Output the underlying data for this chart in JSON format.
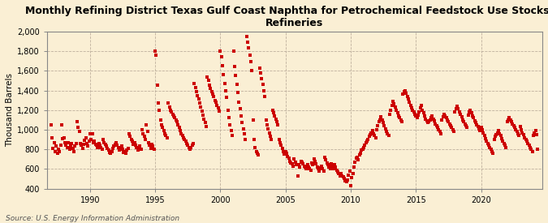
{
  "title": "Monthly Refining District Texas Gulf Coast Naphtha for Petrochemical Feedstock Use Stocks at\nRefineries",
  "ylabel": "Thousand Barrels",
  "source": "Source: U.S. Energy Information Administration",
  "background_color": "#faefd4",
  "plot_bg_color": "#faefd4",
  "marker_color": "#cc0000",
  "marker_size": 5,
  "ylim": [
    400,
    2000
  ],
  "yticks": [
    400,
    600,
    800,
    1000,
    1200,
    1400,
    1600,
    1800,
    2000
  ],
  "ytick_labels": [
    "400",
    "600",
    "800",
    "1,000",
    "1,200",
    "1,400",
    "1,600",
    "1,800",
    "2,000"
  ],
  "xlim_start": 1986.7,
  "xlim_end": 2024.7,
  "xticks": [
    1990,
    1995,
    2000,
    2005,
    2010,
    2015,
    2020
  ],
  "data": [
    [
      1987.0,
      1050
    ],
    [
      1987.08,
      920
    ],
    [
      1987.17,
      810
    ],
    [
      1987.25,
      870
    ],
    [
      1987.33,
      780
    ],
    [
      1987.42,
      830
    ],
    [
      1987.5,
      760
    ],
    [
      1987.58,
      800
    ],
    [
      1987.67,
      780
    ],
    [
      1987.75,
      840
    ],
    [
      1987.83,
      1050
    ],
    [
      1987.92,
      910
    ],
    [
      1988.0,
      920
    ],
    [
      1988.08,
      870
    ],
    [
      1988.17,
      840
    ],
    [
      1988.25,
      820
    ],
    [
      1988.33,
      870
    ],
    [
      1988.42,
      800
    ],
    [
      1988.5,
      830
    ],
    [
      1988.58,
      860
    ],
    [
      1988.67,
      810
    ],
    [
      1988.75,
      780
    ],
    [
      1988.83,
      830
    ],
    [
      1988.92,
      860
    ],
    [
      1989.0,
      1080
    ],
    [
      1989.08,
      1020
    ],
    [
      1989.17,
      980
    ],
    [
      1989.25,
      860
    ],
    [
      1989.33,
      840
    ],
    [
      1989.42,
      810
    ],
    [
      1989.5,
      850
    ],
    [
      1989.58,
      890
    ],
    [
      1989.67,
      920
    ],
    [
      1989.75,
      860
    ],
    [
      1989.83,
      830
    ],
    [
      1989.92,
      880
    ],
    [
      1990.0,
      960
    ],
    [
      1990.08,
      900
    ],
    [
      1990.17,
      960
    ],
    [
      1990.25,
      870
    ],
    [
      1990.33,
      880
    ],
    [
      1990.42,
      850
    ],
    [
      1990.5,
      840
    ],
    [
      1990.58,
      820
    ],
    [
      1990.67,
      860
    ],
    [
      1990.75,
      840
    ],
    [
      1990.83,
      820
    ],
    [
      1990.92,
      800
    ],
    [
      1991.0,
      900
    ],
    [
      1991.08,
      870
    ],
    [
      1991.17,
      850
    ],
    [
      1991.25,
      830
    ],
    [
      1991.33,
      810
    ],
    [
      1991.42,
      790
    ],
    [
      1991.5,
      770
    ],
    [
      1991.58,
      760
    ],
    [
      1991.67,
      780
    ],
    [
      1991.75,
      810
    ],
    [
      1991.83,
      830
    ],
    [
      1991.92,
      850
    ],
    [
      1992.0,
      870
    ],
    [
      1992.08,
      840
    ],
    [
      1992.17,
      820
    ],
    [
      1992.25,
      790
    ],
    [
      1992.33,
      810
    ],
    [
      1992.42,
      830
    ],
    [
      1992.5,
      800
    ],
    [
      1992.58,
      770
    ],
    [
      1992.67,
      780
    ],
    [
      1992.75,
      760
    ],
    [
      1992.83,
      790
    ],
    [
      1992.92,
      810
    ],
    [
      1993.0,
      960
    ],
    [
      1993.08,
      930
    ],
    [
      1993.17,
      900
    ],
    [
      1993.25,
      880
    ],
    [
      1993.33,
      850
    ],
    [
      1993.42,
      870
    ],
    [
      1993.5,
      840
    ],
    [
      1993.58,
      820
    ],
    [
      1993.67,
      790
    ],
    [
      1993.75,
      810
    ],
    [
      1993.83,
      830
    ],
    [
      1993.92,
      800
    ],
    [
      1994.0,
      1000
    ],
    [
      1994.08,
      960
    ],
    [
      1994.17,
      930
    ],
    [
      1994.25,
      900
    ],
    [
      1994.33,
      1050
    ],
    [
      1994.42,
      980
    ],
    [
      1994.5,
      870
    ],
    [
      1994.58,
      840
    ],
    [
      1994.67,
      810
    ],
    [
      1994.75,
      850
    ],
    [
      1994.83,
      830
    ],
    [
      1994.92,
      800
    ],
    [
      1995.0,
      1800
    ],
    [
      1995.08,
      1760
    ],
    [
      1995.17,
      1450
    ],
    [
      1995.25,
      1270
    ],
    [
      1995.33,
      1200
    ],
    [
      1995.42,
      1100
    ],
    [
      1995.5,
      1050
    ],
    [
      1995.58,
      1020
    ],
    [
      1995.67,
      990
    ],
    [
      1995.75,
      960
    ],
    [
      1995.83,
      940
    ],
    [
      1995.92,
      920
    ],
    [
      1996.0,
      1270
    ],
    [
      1996.08,
      1230
    ],
    [
      1996.17,
      1200
    ],
    [
      1996.25,
      1180
    ],
    [
      1996.33,
      1160
    ],
    [
      1996.42,
      1140
    ],
    [
      1996.5,
      1120
    ],
    [
      1996.58,
      1100
    ],
    [
      1996.67,
      1080
    ],
    [
      1996.75,
      1050
    ],
    [
      1996.83,
      1020
    ],
    [
      1996.92,
      990
    ],
    [
      1997.0,
      960
    ],
    [
      1997.08,
      940
    ],
    [
      1997.17,
      920
    ],
    [
      1997.25,
      900
    ],
    [
      1997.33,
      880
    ],
    [
      1997.42,
      860
    ],
    [
      1997.5,
      840
    ],
    [
      1997.58,
      820
    ],
    [
      1997.67,
      800
    ],
    [
      1997.75,
      820
    ],
    [
      1997.83,
      840
    ],
    [
      1997.92,
      860
    ],
    [
      1998.0,
      1470
    ],
    [
      1998.08,
      1430
    ],
    [
      1998.17,
      1390
    ],
    [
      1998.25,
      1350
    ],
    [
      1998.33,
      1310
    ],
    [
      1998.42,
      1270
    ],
    [
      1998.5,
      1230
    ],
    [
      1998.58,
      1190
    ],
    [
      1998.67,
      1150
    ],
    [
      1998.75,
      1110
    ],
    [
      1998.83,
      1070
    ],
    [
      1998.92,
      1030
    ],
    [
      1999.0,
      1540
    ],
    [
      1999.08,
      1500
    ],
    [
      1999.17,
      1450
    ],
    [
      1999.25,
      1420
    ],
    [
      1999.33,
      1390
    ],
    [
      1999.42,
      1360
    ],
    [
      1999.5,
      1340
    ],
    [
      1999.58,
      1300
    ],
    [
      1999.67,
      1280
    ],
    [
      1999.75,
      1250
    ],
    [
      1999.83,
      1220
    ],
    [
      1999.92,
      1190
    ],
    [
      2000.0,
      1800
    ],
    [
      2000.08,
      1740
    ],
    [
      2000.17,
      1650
    ],
    [
      2000.25,
      1560
    ],
    [
      2000.33,
      1470
    ],
    [
      2000.42,
      1400
    ],
    [
      2000.5,
      1330
    ],
    [
      2000.58,
      1200
    ],
    [
      2000.67,
      1120
    ],
    [
      2000.75,
      1050
    ],
    [
      2000.83,
      990
    ],
    [
      2000.92,
      940
    ],
    [
      2001.0,
      1800
    ],
    [
      2001.08,
      1640
    ],
    [
      2001.17,
      1550
    ],
    [
      2001.25,
      1460
    ],
    [
      2001.33,
      1380
    ],
    [
      2001.42,
      1280
    ],
    [
      2001.5,
      1210
    ],
    [
      2001.58,
      1140
    ],
    [
      2001.67,
      1070
    ],
    [
      2001.75,
      1010
    ],
    [
      2001.83,
      960
    ],
    [
      2001.92,
      900
    ],
    [
      2002.0,
      1950
    ],
    [
      2002.08,
      1890
    ],
    [
      2002.17,
      1830
    ],
    [
      2002.25,
      1760
    ],
    [
      2002.33,
      1690
    ],
    [
      2002.42,
      1600
    ],
    [
      2002.5,
      1100
    ],
    [
      2002.58,
      900
    ],
    [
      2002.67,
      820
    ],
    [
      2002.75,
      780
    ],
    [
      2002.83,
      760
    ],
    [
      2002.92,
      740
    ],
    [
      2003.0,
      1630
    ],
    [
      2003.08,
      1580
    ],
    [
      2003.17,
      1520
    ],
    [
      2003.25,
      1460
    ],
    [
      2003.33,
      1400
    ],
    [
      2003.42,
      1340
    ],
    [
      2003.5,
      1100
    ],
    [
      2003.58,
      1050
    ],
    [
      2003.67,
      1010
    ],
    [
      2003.75,
      970
    ],
    [
      2003.83,
      930
    ],
    [
      2003.92,
      900
    ],
    [
      2004.0,
      1200
    ],
    [
      2004.08,
      1170
    ],
    [
      2004.17,
      1140
    ],
    [
      2004.25,
      1110
    ],
    [
      2004.33,
      1080
    ],
    [
      2004.42,
      1050
    ],
    [
      2004.5,
      900
    ],
    [
      2004.58,
      870
    ],
    [
      2004.67,
      840
    ],
    [
      2004.75,
      810
    ],
    [
      2004.83,
      780
    ],
    [
      2004.92,
      750
    ],
    [
      2005.0,
      780
    ],
    [
      2005.08,
      760
    ],
    [
      2005.17,
      730
    ],
    [
      2005.25,
      710
    ],
    [
      2005.33,
      680
    ],
    [
      2005.42,
      660
    ],
    [
      2005.5,
      650
    ],
    [
      2005.58,
      630
    ],
    [
      2005.67,
      700
    ],
    [
      2005.75,
      670
    ],
    [
      2005.83,
      640
    ],
    [
      2005.92,
      530
    ],
    [
      2006.0,
      640
    ],
    [
      2006.08,
      620
    ],
    [
      2006.17,
      680
    ],
    [
      2006.25,
      670
    ],
    [
      2006.33,
      650
    ],
    [
      2006.42,
      630
    ],
    [
      2006.5,
      620
    ],
    [
      2006.58,
      600
    ],
    [
      2006.67,
      640
    ],
    [
      2006.75,
      620
    ],
    [
      2006.83,
      600
    ],
    [
      2006.92,
      590
    ],
    [
      2007.0,
      660
    ],
    [
      2007.08,
      640
    ],
    [
      2007.17,
      700
    ],
    [
      2007.25,
      680
    ],
    [
      2007.33,
      650
    ],
    [
      2007.42,
      620
    ],
    [
      2007.5,
      600
    ],
    [
      2007.58,
      580
    ],
    [
      2007.67,
      610
    ],
    [
      2007.75,
      630
    ],
    [
      2007.83,
      600
    ],
    [
      2007.92,
      580
    ],
    [
      2008.0,
      720
    ],
    [
      2008.08,
      690
    ],
    [
      2008.17,
      660
    ],
    [
      2008.25,
      640
    ],
    [
      2008.33,
      620
    ],
    [
      2008.42,
      600
    ],
    [
      2008.5,
      650
    ],
    [
      2008.58,
      630
    ],
    [
      2008.67,
      600
    ],
    [
      2008.75,
      640
    ],
    [
      2008.83,
      620
    ],
    [
      2008.92,
      590
    ],
    [
      2009.0,
      570
    ],
    [
      2009.08,
      550
    ],
    [
      2009.17,
      530
    ],
    [
      2009.25,
      550
    ],
    [
      2009.33,
      530
    ],
    [
      2009.42,
      520
    ],
    [
      2009.5,
      500
    ],
    [
      2009.58,
      480
    ],
    [
      2009.67,
      470
    ],
    [
      2009.75,
      490
    ],
    [
      2009.83,
      540
    ],
    [
      2009.92,
      580
    ],
    [
      2010.0,
      430
    ],
    [
      2010.08,
      510
    ],
    [
      2010.17,
      550
    ],
    [
      2010.25,
      620
    ],
    [
      2010.33,
      670
    ],
    [
      2010.42,
      710
    ],
    [
      2010.5,
      720
    ],
    [
      2010.58,
      690
    ],
    [
      2010.67,
      740
    ],
    [
      2010.75,
      760
    ],
    [
      2010.83,
      790
    ],
    [
      2010.92,
      800
    ],
    [
      2011.0,
      820
    ],
    [
      2011.08,
      840
    ],
    [
      2011.17,
      870
    ],
    [
      2011.25,
      880
    ],
    [
      2011.33,
      900
    ],
    [
      2011.42,
      930
    ],
    [
      2011.5,
      950
    ],
    [
      2011.58,
      970
    ],
    [
      2011.67,
      990
    ],
    [
      2011.75,
      960
    ],
    [
      2011.83,
      940
    ],
    [
      2011.92,
      920
    ],
    [
      2012.0,
      1000
    ],
    [
      2012.08,
      1040
    ],
    [
      2012.17,
      1080
    ],
    [
      2012.25,
      1100
    ],
    [
      2012.33,
      1130
    ],
    [
      2012.42,
      1100
    ],
    [
      2012.5,
      1070
    ],
    [
      2012.58,
      1040
    ],
    [
      2012.67,
      1010
    ],
    [
      2012.75,
      980
    ],
    [
      2012.83,
      960
    ],
    [
      2012.92,
      940
    ],
    [
      2013.0,
      1160
    ],
    [
      2013.08,
      1200
    ],
    [
      2013.17,
      1250
    ],
    [
      2013.25,
      1290
    ],
    [
      2013.33,
      1260
    ],
    [
      2013.42,
      1230
    ],
    [
      2013.5,
      1200
    ],
    [
      2013.58,
      1170
    ],
    [
      2013.67,
      1140
    ],
    [
      2013.75,
      1120
    ],
    [
      2013.83,
      1100
    ],
    [
      2013.92,
      1080
    ],
    [
      2014.0,
      1360
    ],
    [
      2014.08,
      1390
    ],
    [
      2014.17,
      1400
    ],
    [
      2014.25,
      1370
    ],
    [
      2014.33,
      1340
    ],
    [
      2014.42,
      1310
    ],
    [
      2014.5,
      1280
    ],
    [
      2014.58,
      1250
    ],
    [
      2014.67,
      1220
    ],
    [
      2014.75,
      1200
    ],
    [
      2014.83,
      1180
    ],
    [
      2014.92,
      1160
    ],
    [
      2015.0,
      1140
    ],
    [
      2015.08,
      1120
    ],
    [
      2015.17,
      1150
    ],
    [
      2015.25,
      1180
    ],
    [
      2015.33,
      1220
    ],
    [
      2015.42,
      1250
    ],
    [
      2015.5,
      1200
    ],
    [
      2015.58,
      1170
    ],
    [
      2015.67,
      1140
    ],
    [
      2015.75,
      1110
    ],
    [
      2015.83,
      1090
    ],
    [
      2015.92,
      1070
    ],
    [
      2016.0,
      1080
    ],
    [
      2016.08,
      1100
    ],
    [
      2016.17,
      1120
    ],
    [
      2016.25,
      1140
    ],
    [
      2016.33,
      1110
    ],
    [
      2016.42,
      1090
    ],
    [
      2016.5,
      1060
    ],
    [
      2016.58,
      1040
    ],
    [
      2016.67,
      1020
    ],
    [
      2016.75,
      1000
    ],
    [
      2016.83,
      980
    ],
    [
      2016.92,
      960
    ],
    [
      2017.0,
      1100
    ],
    [
      2017.08,
      1130
    ],
    [
      2017.17,
      1160
    ],
    [
      2017.25,
      1140
    ],
    [
      2017.33,
      1120
    ],
    [
      2017.42,
      1100
    ],
    [
      2017.5,
      1080
    ],
    [
      2017.58,
      1060
    ],
    [
      2017.67,
      1040
    ],
    [
      2017.75,
      1020
    ],
    [
      2017.83,
      1000
    ],
    [
      2017.92,
      980
    ],
    [
      2018.0,
      1180
    ],
    [
      2018.08,
      1210
    ],
    [
      2018.17,
      1240
    ],
    [
      2018.25,
      1210
    ],
    [
      2018.33,
      1180
    ],
    [
      2018.42,
      1160
    ],
    [
      2018.5,
      1130
    ],
    [
      2018.58,
      1100
    ],
    [
      2018.67,
      1080
    ],
    [
      2018.75,
      1060
    ],
    [
      2018.83,
      1040
    ],
    [
      2018.92,
      1020
    ],
    [
      2019.0,
      1150
    ],
    [
      2019.08,
      1180
    ],
    [
      2019.17,
      1200
    ],
    [
      2019.25,
      1170
    ],
    [
      2019.33,
      1140
    ],
    [
      2019.42,
      1120
    ],
    [
      2019.5,
      1090
    ],
    [
      2019.58,
      1070
    ],
    [
      2019.67,
      1050
    ],
    [
      2019.75,
      1030
    ],
    [
      2019.83,
      1010
    ],
    [
      2019.92,
      990
    ],
    [
      2020.0,
      1020
    ],
    [
      2020.08,
      1000
    ],
    [
      2020.17,
      970
    ],
    [
      2020.25,
      940
    ],
    [
      2020.33,
      910
    ],
    [
      2020.42,
      880
    ],
    [
      2020.5,
      860
    ],
    [
      2020.58,
      840
    ],
    [
      2020.67,
      820
    ],
    [
      2020.75,
      800
    ],
    [
      2020.83,
      780
    ],
    [
      2020.92,
      760
    ],
    [
      2021.0,
      900
    ],
    [
      2021.08,
      930
    ],
    [
      2021.17,
      950
    ],
    [
      2021.25,
      970
    ],
    [
      2021.33,
      990
    ],
    [
      2021.42,
      960
    ],
    [
      2021.5,
      940
    ],
    [
      2021.58,
      910
    ],
    [
      2021.67,
      880
    ],
    [
      2021.75,
      860
    ],
    [
      2021.83,
      840
    ],
    [
      2021.92,
      820
    ],
    [
      2022.0,
      1080
    ],
    [
      2022.08,
      1100
    ],
    [
      2022.17,
      1120
    ],
    [
      2022.25,
      1100
    ],
    [
      2022.33,
      1080
    ],
    [
      2022.42,
      1060
    ],
    [
      2022.5,
      1040
    ],
    [
      2022.58,
      1020
    ],
    [
      2022.67,
      1000
    ],
    [
      2022.75,
      980
    ],
    [
      2022.83,
      960
    ],
    [
      2022.92,
      940
    ],
    [
      2023.0,
      1030
    ],
    [
      2023.08,
      1000
    ],
    [
      2023.17,
      970
    ],
    [
      2023.25,
      950
    ],
    [
      2023.33,
      920
    ],
    [
      2023.42,
      900
    ],
    [
      2023.5,
      880
    ],
    [
      2023.58,
      860
    ],
    [
      2023.67,
      840
    ],
    [
      2023.75,
      820
    ],
    [
      2023.83,
      800
    ],
    [
      2023.92,
      780
    ],
    [
      2024.0,
      940
    ],
    [
      2024.08,
      970
    ],
    [
      2024.17,
      990
    ],
    [
      2024.25,
      950
    ],
    [
      2024.33,
      800
    ]
  ]
}
